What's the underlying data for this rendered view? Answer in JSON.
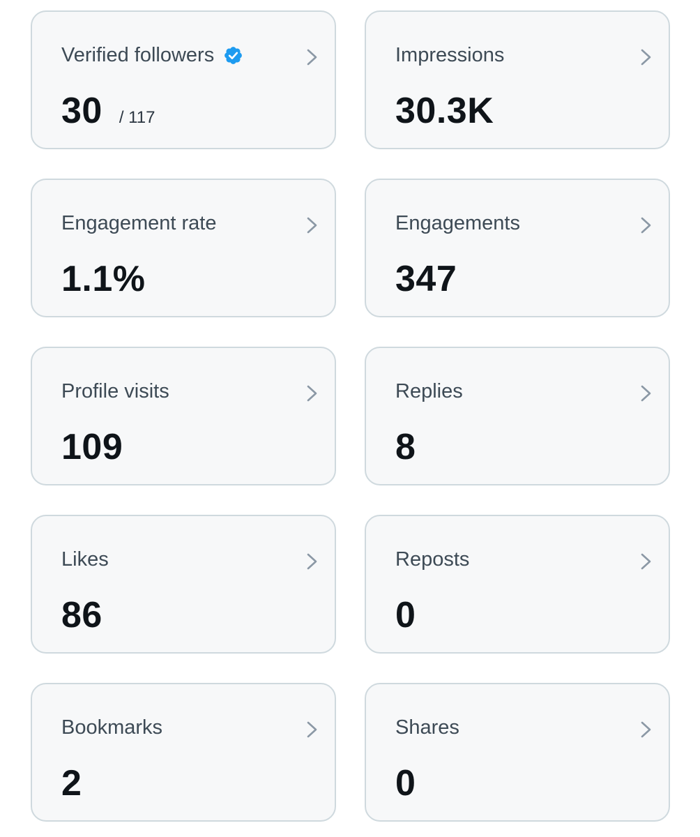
{
  "metrics": [
    {
      "label": "Verified followers",
      "value": "30",
      "sub": "/ 117",
      "icon": "verified-badge-icon"
    },
    {
      "label": "Impressions",
      "value": "30.3K"
    },
    {
      "label": "Engagement rate",
      "value": "1.1%"
    },
    {
      "label": "Engagements",
      "value": "347"
    },
    {
      "label": "Profile visits",
      "value": "109"
    },
    {
      "label": "Replies",
      "value": "8"
    },
    {
      "label": "Likes",
      "value": "86"
    },
    {
      "label": "Reposts",
      "value": "0"
    },
    {
      "label": "Bookmarks",
      "value": "2"
    },
    {
      "label": "Shares",
      "value": "0"
    }
  ],
  "colors": {
    "card_background": "#f7f8f9",
    "card_border": "#cfd9de",
    "label_text": "#3d4a55",
    "value_text": "#0f1419",
    "chevron": "#8b98a5",
    "verified_badge": "#1d9bf0"
  }
}
